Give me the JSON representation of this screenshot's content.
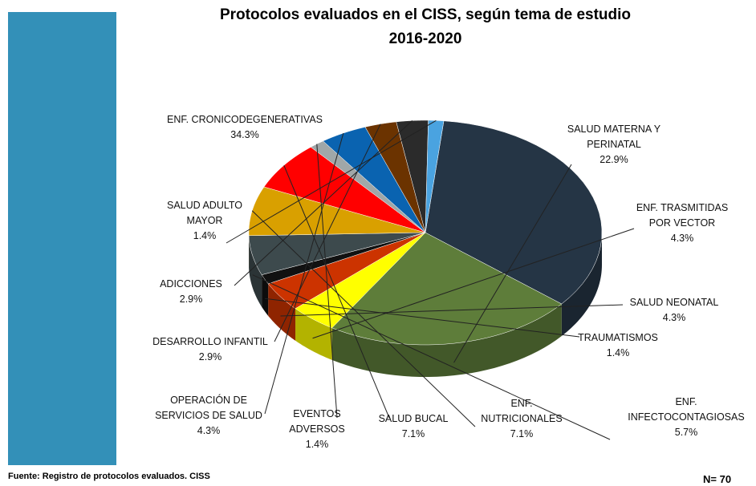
{
  "chart_data": {
    "type": "pie",
    "title": "Protocolos evaluados en el CISS, según tema de estudio",
    "subtitle": "2016-2020",
    "source": "Fuente: Registro de protocolos evaluados. CISS",
    "note": "N= 70",
    "categories": [
      "ENF. CRONICODEGENERATIVAS",
      "SALUD MATERNA Y\nPERINATAL",
      "ENF. TRASMITIDAS\nPOR VECTOR",
      "SALUD NEONATAL",
      "TRAUMATISMOS",
      "ENF.\nINFECTOCONTAGIOSAS",
      "ENF.\nNUTRICIONALES",
      "SALUD BUCAL",
      "EVENTOS\nADVERSOS",
      "OPERACIÓN DE\nSERVICIOS DE SALUD",
      "DESARROLLO INFANTIL",
      "ADICCIONES",
      "SALUD ADULTO\nMAYOR"
    ],
    "values": [
      34.3,
      22.9,
      4.3,
      4.3,
      1.4,
      5.7,
      7.1,
      7.1,
      1.4,
      4.3,
      2.9,
      2.9,
      1.4
    ],
    "value_labels": [
      "34.3%",
      "22.9%",
      "4.3%",
      "4.3%",
      "1.4%",
      "5.7%",
      "7.1%",
      "7.1%",
      "1.4%",
      "4.3%",
      "2.9%",
      "2.9%",
      "1.4%"
    ],
    "colors": [
      "#253545",
      "#5e7d3a",
      "#ffff00",
      "#cc3300",
      "#111111",
      "#3d4a4d",
      "#d9a000",
      "#ff0000",
      "#a0a7a8",
      "#0a63b0",
      "#6b3300",
      "#2b2b2b",
      "#4aa3e0"
    ]
  }
}
